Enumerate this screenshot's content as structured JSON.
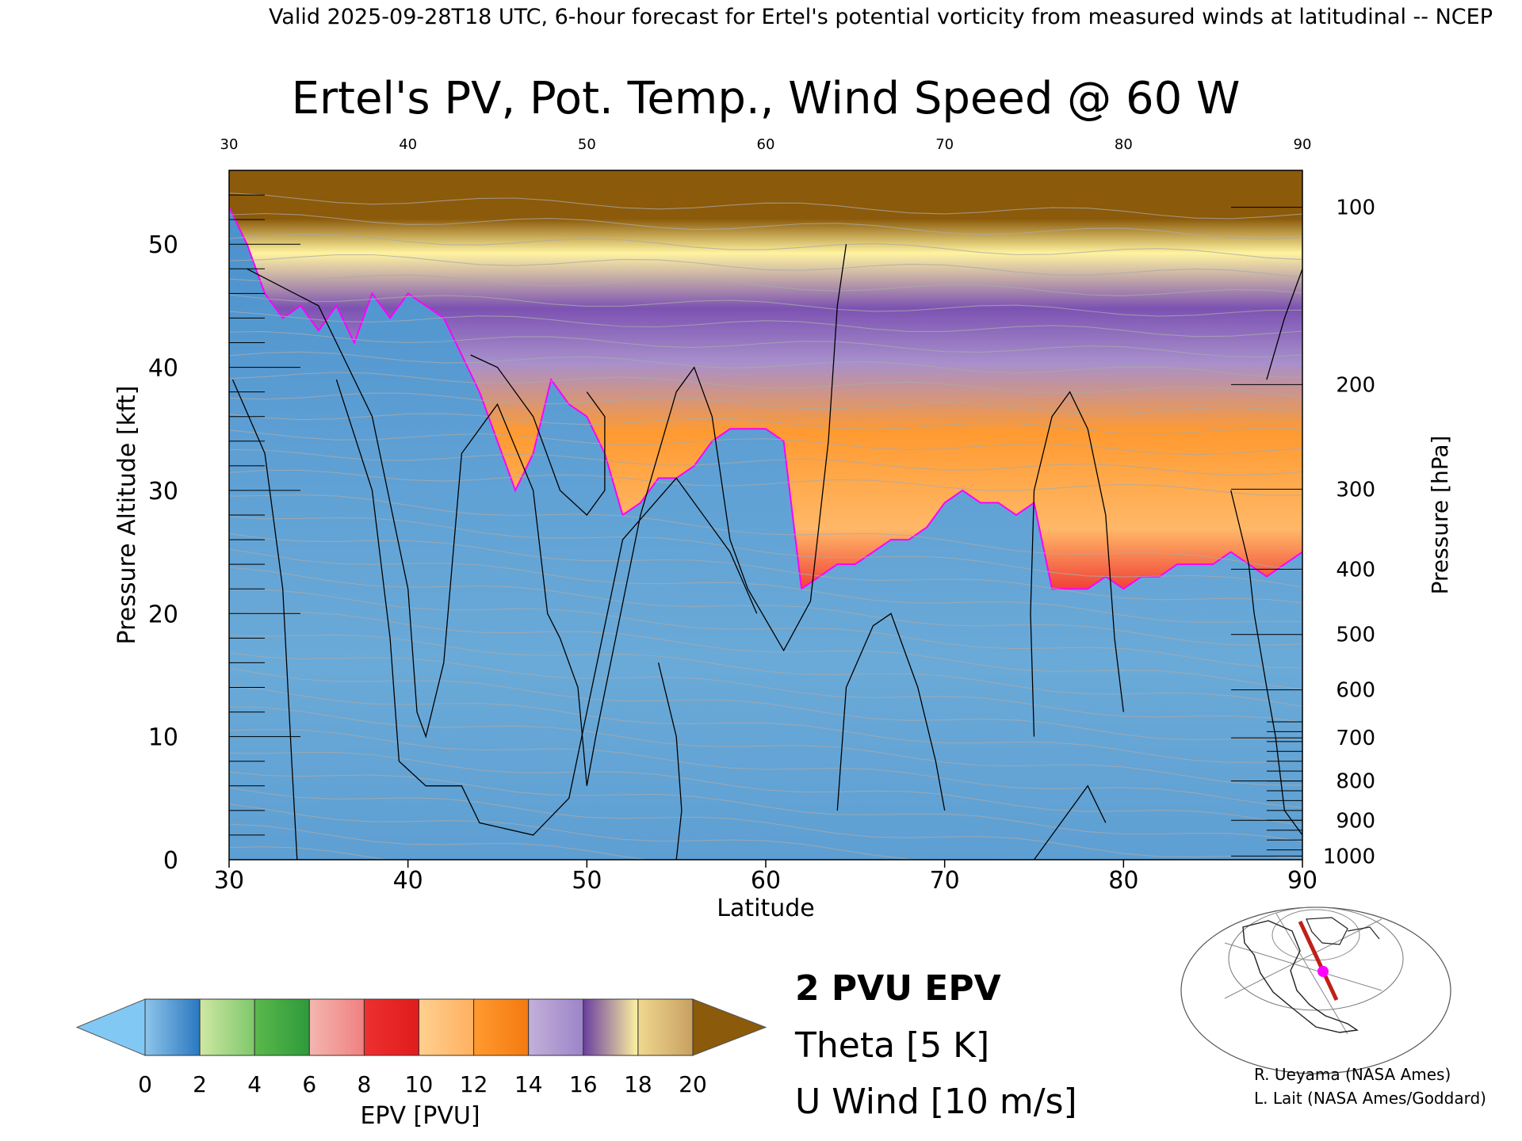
{
  "header": {
    "validity_line": "Valid 2025-09-28T18 UTC, 6-hour forecast for Ertel's potential vorticity from measured winds at latitudinal -- NCEP"
  },
  "chart_data": {
    "type": "heatmap",
    "title": "Ertel's PV, Pot. Temp., Wind Speed @ 60 W",
    "xlabel": "Latitude",
    "ylabel": "Pressure Altitude [kft]",
    "y2label": "Pressure [hPa]",
    "xlim": [
      30,
      90
    ],
    "ylim": [
      0,
      56
    ],
    "x_ticks": [
      "30",
      "40",
      "50",
      "60",
      "70",
      "80",
      "90"
    ],
    "top_x_ticks": [
      "30",
      "40",
      "50",
      "60",
      "70",
      "80",
      "90"
    ],
    "y_ticks": [
      "0",
      "10",
      "20",
      "30",
      "40",
      "50"
    ],
    "pressure_ticks": [
      {
        "label": "100",
        "kft": 53.0
      },
      {
        "label": "200",
        "kft": 38.6
      },
      {
        "label": "300",
        "kft": 30.1
      },
      {
        "label": "400",
        "kft": 23.6
      },
      {
        "label": "500",
        "kft": 18.3
      },
      {
        "label": "600",
        "kft": 13.8
      },
      {
        "label": "700",
        "kft": 9.9
      },
      {
        "label": "800",
        "kft": 6.4
      },
      {
        "label": "900",
        "kft": 3.2
      },
      {
        "label": "1000",
        "kft": 0.3
      }
    ],
    "tropopause_2pvu": {
      "lat": [
        30,
        31,
        32,
        33,
        34,
        35,
        36,
        37,
        38,
        39,
        40,
        41,
        42,
        43,
        44,
        45,
        46,
        47,
        48,
        49,
        50,
        51,
        52,
        53,
        54,
        55,
        56,
        57,
        58,
        59,
        60,
        61,
        62,
        63,
        64,
        65,
        66,
        67,
        68,
        69,
        70,
        71,
        72,
        73,
        74,
        75,
        76,
        77,
        78,
        79,
        80,
        81,
        82,
        83,
        84,
        85,
        86,
        87,
        88,
        89,
        90
      ],
      "kft": [
        53,
        50,
        46,
        44,
        45,
        43,
        45,
        42,
        46,
        44,
        46,
        45,
        44,
        41,
        38,
        34,
        30,
        33,
        39,
        37,
        36,
        33,
        28,
        29,
        31,
        31,
        32,
        34,
        35,
        35,
        35,
        34,
        22,
        23,
        24,
        24,
        25,
        26,
        26,
        27,
        29,
        30,
        29,
        29,
        28,
        29,
        22,
        22,
        22,
        23,
        22,
        23,
        23,
        24,
        24,
        24,
        25,
        24,
        23,
        24,
        25
      ]
    },
    "colorbar": {
      "label": "EPV [PVU]",
      "tick_labels": [
        "0",
        "2",
        "4",
        "6",
        "8",
        "10",
        "12",
        "14",
        "16",
        "18",
        "20"
      ],
      "range": [
        0,
        20
      ],
      "bands": [
        {
          "from": 0,
          "to": 2,
          "colors": [
            "#8ec4ea",
            "#2a78c0"
          ]
        },
        {
          "from": 2,
          "to": 4,
          "colors": [
            "#cfe7a4",
            "#7ec86a"
          ]
        },
        {
          "from": 4,
          "to": 6,
          "colors": [
            "#5bb84c",
            "#2e9a3a"
          ]
        },
        {
          "from": 6,
          "to": 8,
          "colors": [
            "#f4b6b0",
            "#f08080"
          ]
        },
        {
          "from": 8,
          "to": 10,
          "colors": [
            "#ee3030",
            "#e01c1c"
          ]
        },
        {
          "from": 10,
          "to": 12,
          "colors": [
            "#ffd090",
            "#ffb060"
          ]
        },
        {
          "from": 12,
          "to": 14,
          "colors": [
            "#ff9a30",
            "#f47a10"
          ]
        },
        {
          "from": 14,
          "to": 16,
          "colors": [
            "#c4b0da",
            "#9c84c8"
          ]
        },
        {
          "from": 16,
          "to": 18,
          "colors": [
            "#6a3ea0",
            "#fff3a0"
          ]
        },
        {
          "from": 18,
          "to": 20,
          "colors": [
            "#f0d890",
            "#c8a060"
          ]
        }
      ],
      "under_color": "#82c8f4",
      "over_color": "#8b5a0a"
    },
    "legend": [
      {
        "label": "2 PVU EPV",
        "color": "#ff00ff"
      },
      {
        "label": "Theta [5 K]",
        "color": "#aaaaaa"
      },
      {
        "label": "U Wind [10 m/s]",
        "color": "#000000"
      }
    ]
  },
  "credits": {
    "line1": "R. Ueyama (NASA Ames)",
    "line2": "L. Lait (NASA Ames/Goddard)"
  },
  "colors": {
    "tropopause": "#ff00ff",
    "theta": "#aaaaaa",
    "wind": "#000000"
  }
}
